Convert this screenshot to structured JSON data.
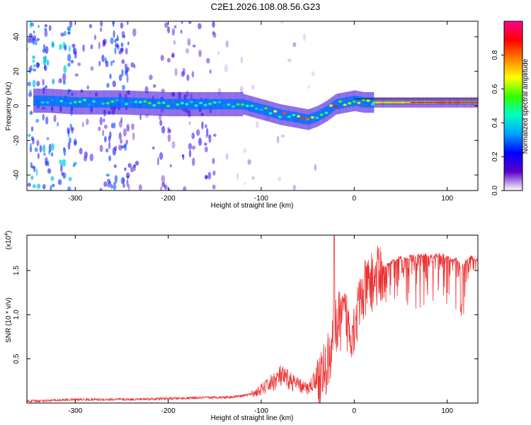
{
  "title": "C2E1.2026.108.08.56.G23",
  "chart_data": [
    {
      "type": "heatmap",
      "xlabel": "Height of straight line (km)",
      "ylabel": "Frequency (Hz)",
      "xlim": [
        -352,
        133
      ],
      "ylim": [
        -49,
        49
      ],
      "xticks": [
        -300,
        -200,
        -100,
        0,
        100
      ],
      "yticks": [
        -40,
        -20,
        0,
        20,
        40
      ],
      "colorbar": {
        "label": "Normalized spectral amplitude",
        "range": [
          0,
          1
        ],
        "ticks": [
          "0.0",
          "0.2",
          "0.4",
          "0.6",
          "0.8"
        ],
        "tick_values": [
          0,
          0.2,
          0.4,
          0.6,
          0.8
        ],
        "colors": [
          "#ffffff",
          "#5a00c8",
          "#0000ff",
          "#00a0ff",
          "#00ffc8",
          "#30ff00",
          "#ffff00",
          "#ff8000",
          "#ff0000",
          "#ff0090"
        ]
      },
      "ridge_x": [
        -330,
        -300,
        -250,
        -200,
        -150,
        -120,
        -100,
        -80,
        -60,
        -50,
        -40,
        -30,
        -20,
        -10,
        0,
        10,
        30,
        60,
        100,
        133
      ],
      "ridge_y": [
        3,
        2,
        2,
        1,
        1,
        1,
        -2,
        -5,
        -7,
        -8,
        -6,
        -3,
        1,
        2,
        3,
        2,
        2,
        2,
        2,
        2
      ]
    },
    {
      "type": "line",
      "xlabel": "Height of straight line (km)",
      "ylabel": "SNR (10 * v/v)",
      "scale_note_base": "(x10",
      "scale_note_exp": "4",
      "scale_note_end": ")",
      "xlim": [
        -352,
        133
      ],
      "ylim": [
        0,
        1.9
      ],
      "xticks": [
        -300,
        -200,
        -100,
        0,
        100
      ],
      "yticks": [
        0.5,
        1.0,
        1.5
      ],
      "ytick_labels": [
        "0.5",
        "1.0",
        "1.5"
      ],
      "color": "#ee3333",
      "series": [
        {
          "x": [
            -352,
            -300,
            -250,
            -200,
            -160,
            -130,
            -110,
            -100,
            -90,
            -80,
            -70,
            -60,
            -50,
            -40,
            -30,
            -25,
            -20,
            -15,
            -10,
            -5,
            0,
            5,
            10,
            15,
            20,
            30,
            40,
            50,
            60,
            70,
            80,
            90,
            100,
            110,
            115,
            120,
            125,
            133
          ],
          "y": [
            0.02,
            0.04,
            0.04,
            0.05,
            0.06,
            0.07,
            0.1,
            0.15,
            0.22,
            0.3,
            0.26,
            0.2,
            0.16,
            0.3,
            0.45,
            0.7,
            0.95,
            1.0,
            1.05,
            0.9,
            0.95,
            1.15,
            1.3,
            1.4,
            1.45,
            1.55,
            1.6,
            1.65,
            1.66,
            1.67,
            1.67,
            1.67,
            1.66,
            1.63,
            1.55,
            1.6,
            1.65,
            1.62
          ]
        }
      ]
    }
  ]
}
